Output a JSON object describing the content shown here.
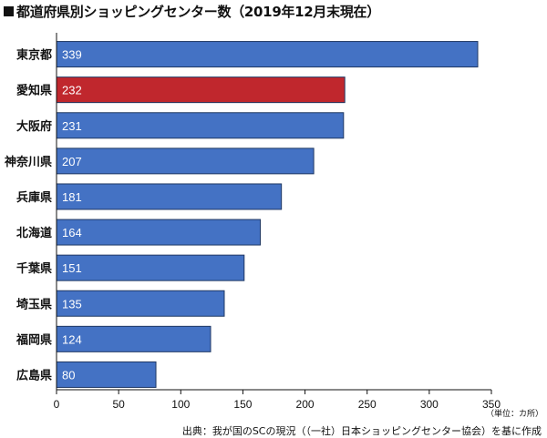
{
  "title": "都道府県別ショッピングセンター数（2019年12月末現在）",
  "unit_note": "（単位：カ所）",
  "source_note": "出典：我が国のSCの現況（（一社）日本ショッピングセンター協会）を基に作成",
  "chart_data": {
    "type": "bar",
    "orientation": "horizontal",
    "title": "都道府県別ショッピングセンター数（2019年12月末現在）",
    "categories": [
      "東京都",
      "愛知県",
      "大阪府",
      "神奈川県",
      "兵庫県",
      "北海道",
      "千葉県",
      "埼玉県",
      "福岡県",
      "広島県"
    ],
    "values": [
      339,
      232,
      231,
      207,
      181,
      164,
      151,
      135,
      124,
      80
    ],
    "data_labels": [
      "339",
      "232",
      "231",
      "207",
      "181",
      "164",
      "151",
      "135",
      "124",
      "80"
    ],
    "highlight": "愛知県",
    "xlim": [
      0,
      350
    ],
    "xticks": [
      0,
      50,
      100,
      150,
      200,
      250,
      300,
      350
    ],
    "xlabel": "（単位：カ所）",
    "ylabel": "",
    "grid": false,
    "colors": {
      "default": "#4472C4",
      "highlight": "#C0272D",
      "border": "#1F3864"
    }
  }
}
